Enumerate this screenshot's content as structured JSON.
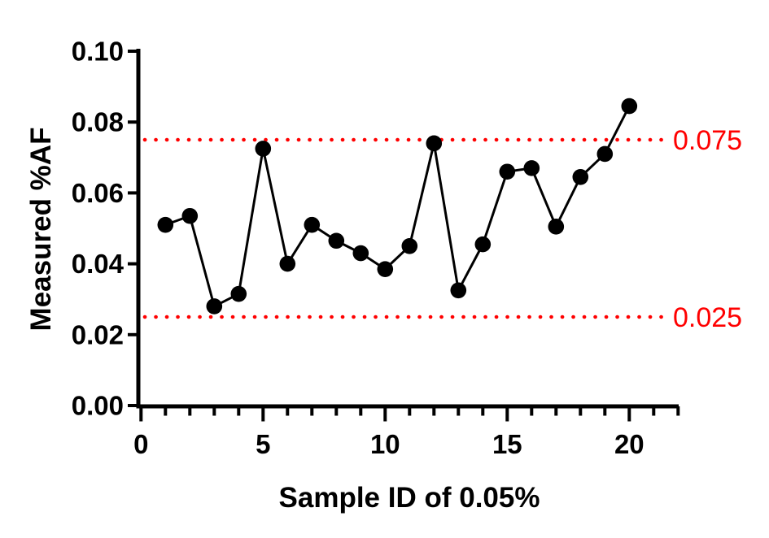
{
  "chart_data": {
    "type": "line",
    "series_name": "Measured %AF vs Sample ID",
    "x": [
      1,
      2,
      3,
      4,
      5,
      6,
      7,
      8,
      9,
      10,
      11,
      12,
      13,
      14,
      15,
      16,
      17,
      18,
      19,
      20
    ],
    "values": [
      0.051,
      0.0535,
      0.028,
      0.0315,
      0.0725,
      0.04,
      0.051,
      0.0465,
      0.043,
      0.0385,
      0.045,
      0.074,
      0.0325,
      0.0455,
      0.066,
      0.067,
      0.0505,
      0.0645,
      0.071,
      0.0845
    ],
    "title": "",
    "xlabel": "Sample ID of 0.05%",
    "ylabel": "Measured %AF",
    "xlim": [
      0,
      22
    ],
    "ylim": [
      0,
      0.1
    ],
    "x_major_ticks": [
      0,
      5,
      10,
      15,
      20
    ],
    "x_tick_labels": [
      "0",
      "5",
      "10",
      "15",
      "20"
    ],
    "x_minor_tick_step": 1,
    "y_ticks": [
      0,
      0.02,
      0.04,
      0.06,
      0.08,
      0.1
    ],
    "y_tick_labels": [
      "0.00",
      "0.02",
      "0.04",
      "0.06",
      "0.08",
      "0.10"
    ],
    "grid": false,
    "legend": "none",
    "marker_color": "#000000",
    "line_color": "#000000",
    "axis_color": "#000000",
    "reference_lines": [
      {
        "value": 0.075,
        "label": "0.075",
        "color": "#FF0000",
        "style": "dotted"
      },
      {
        "value": 0.025,
        "label": "0.025",
        "color": "#FF0000",
        "style": "dotted"
      }
    ]
  }
}
